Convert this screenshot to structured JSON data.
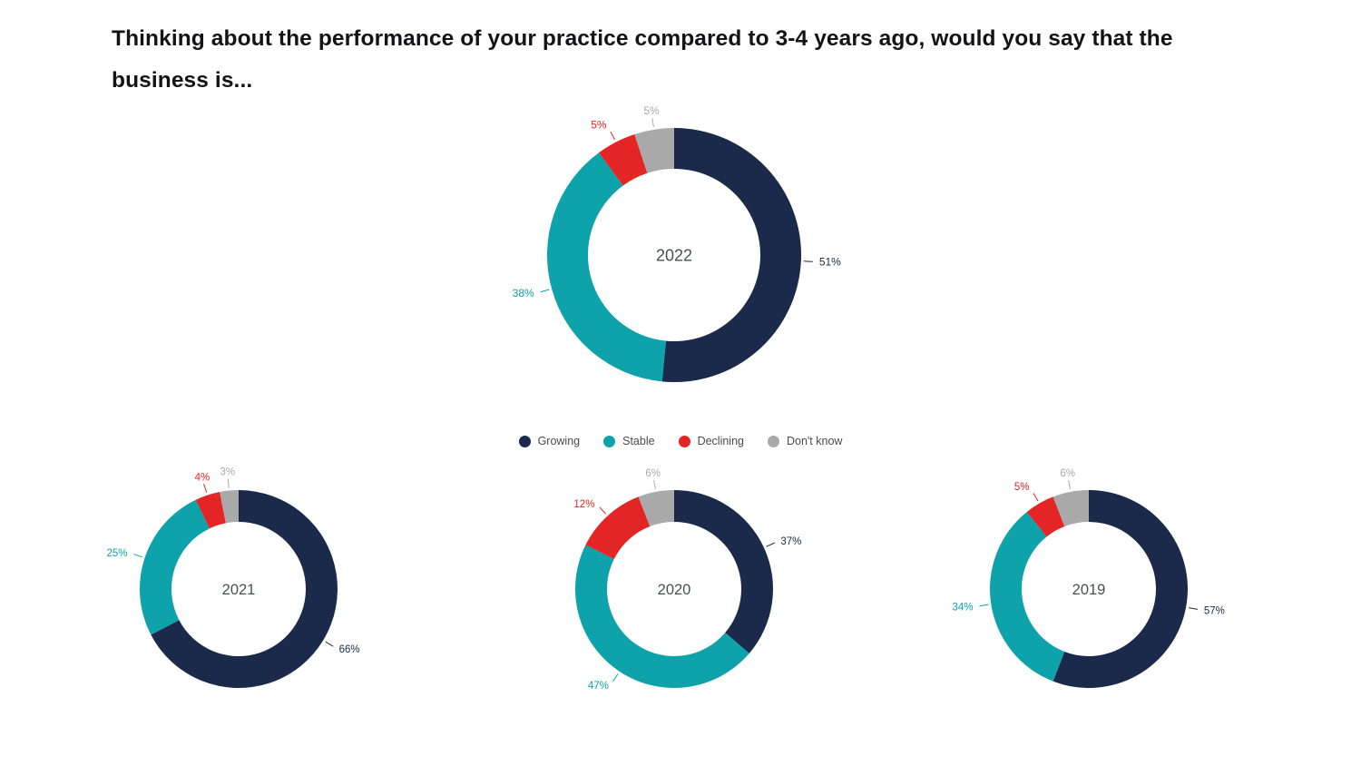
{
  "title": "Thinking about the performance of your practice compared to 3-4 years ago, would you say that the business is...",
  "chart_data": {
    "type": "pie",
    "variant": "donut",
    "legend_position": "center-middle",
    "categories": [
      "Growing",
      "Stable",
      "Declining",
      "Don't know"
    ],
    "colors": [
      "#1b2a4a",
      "#0ea2ab",
      "#e32526",
      "#a9a9a9"
    ],
    "label_suffix": "%",
    "charts": [
      {
        "year": "2022",
        "values": [
          51,
          38,
          5,
          5
        ]
      },
      {
        "year": "2021",
        "values": [
          66,
          25,
          4,
          3
        ]
      },
      {
        "year": "2020",
        "values": [
          37,
          47,
          12,
          6
        ]
      },
      {
        "year": "2019",
        "values": [
          57,
          34,
          5,
          6
        ]
      }
    ],
    "center_labels": [
      "2022",
      "2021",
      "2020",
      "2019"
    ]
  }
}
